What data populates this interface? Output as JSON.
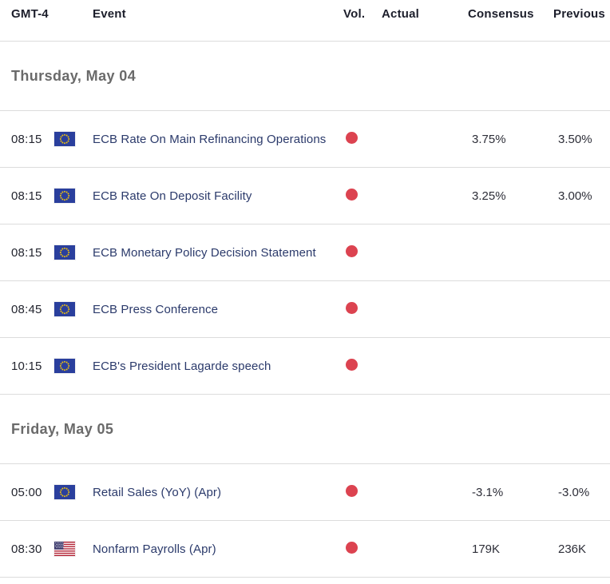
{
  "table": {
    "columns": [
      "GMT-4",
      "Event",
      "Vol.",
      "Actual",
      "Consensus",
      "Previous"
    ],
    "colors": {
      "volatility_high": "#dc4350",
      "event_link": "#2b3a6b",
      "header_text": "#1c1e2b",
      "section_text": "#6a6a6a",
      "value_text": "#2d2e38",
      "border": "#dcdcdc",
      "background": "#ffffff",
      "eu_flag_blue": "#2a3f9d",
      "eu_flag_star_yellow": "#ffcc00",
      "us_flag_red": "#b22234",
      "us_flag_blue": "#3c3b6e"
    },
    "sections": [
      {
        "date": "Thursday, May 04",
        "rows": [
          {
            "time": "08:15",
            "flag": "eu",
            "event": "ECB Rate On Main Refinancing Operations",
            "volatility": "high",
            "actual": "",
            "consensus": "3.75%",
            "previous": "3.50%"
          },
          {
            "time": "08:15",
            "flag": "eu",
            "event": "ECB Rate On Deposit Facility",
            "volatility": "high",
            "actual": "",
            "consensus": "3.25%",
            "previous": "3.00%"
          },
          {
            "time": "08:15",
            "flag": "eu",
            "event": "ECB Monetary Policy Decision Statement",
            "volatility": "high",
            "actual": "",
            "consensus": "",
            "previous": ""
          },
          {
            "time": "08:45",
            "flag": "eu",
            "event": "ECB Press Conference",
            "volatility": "high",
            "actual": "",
            "consensus": "",
            "previous": ""
          },
          {
            "time": "10:15",
            "flag": "eu",
            "event": "ECB's President Lagarde speech",
            "volatility": "high",
            "actual": "",
            "consensus": "",
            "previous": ""
          }
        ]
      },
      {
        "date": "Friday, May 05",
        "rows": [
          {
            "time": "05:00",
            "flag": "eu",
            "event": "Retail Sales (YoY) (Apr)",
            "volatility": "high",
            "actual": "",
            "consensus": "-3.1%",
            "previous": "-3.0%"
          },
          {
            "time": "08:30",
            "flag": "us",
            "event": "Nonfarm Payrolls (Apr)",
            "volatility": "high",
            "actual": "",
            "consensus": "179K",
            "previous": "236K"
          }
        ]
      }
    ]
  }
}
